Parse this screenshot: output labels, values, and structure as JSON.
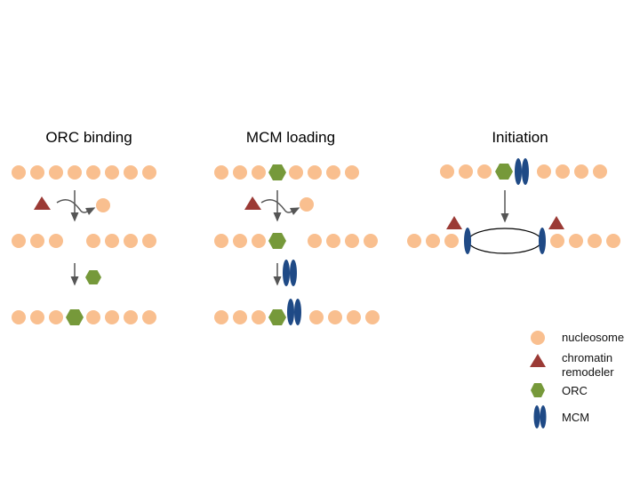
{
  "panels": {
    "orc": {
      "title": "ORC binding"
    },
    "mcm": {
      "title": "MCM loading"
    },
    "init": {
      "title": "Initiation"
    }
  },
  "legend": {
    "nucleosome": "nucleosome",
    "remodeler_line1": "chromatin",
    "remodeler_line2": "remodeler",
    "orc": "ORC",
    "mcm": "MCM"
  },
  "colors": {
    "nucleosome": "#f9bf8f",
    "remodeler": "#9b3a35",
    "orc": "#76993a",
    "mcm": "#1f4a86",
    "arrow": "#555555"
  }
}
